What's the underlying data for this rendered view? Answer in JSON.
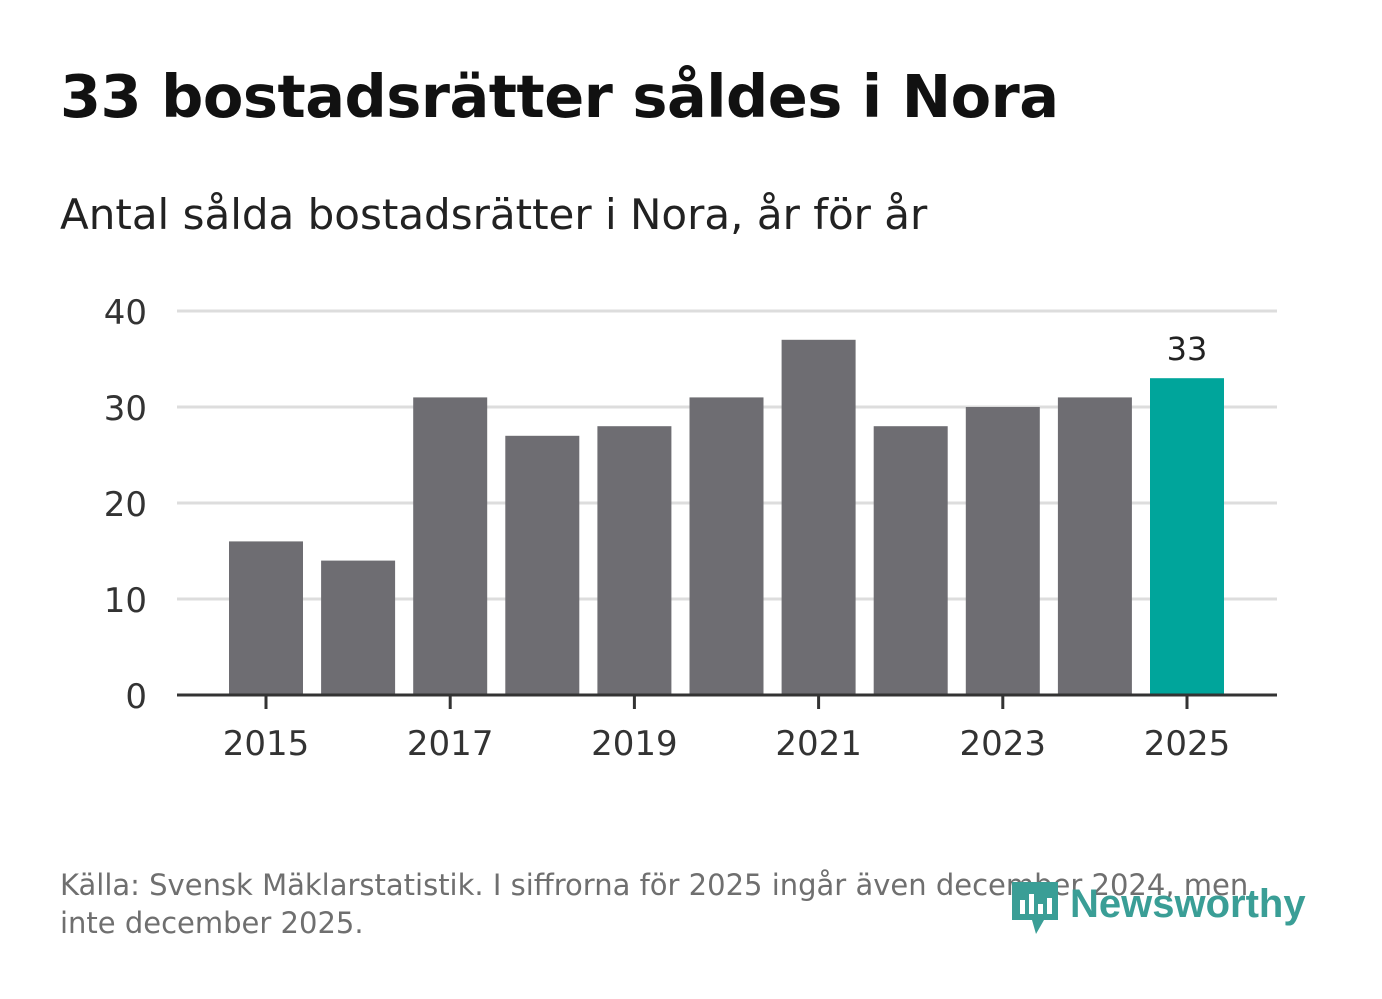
{
  "title": "33 bostadsrätter såldes i Nora",
  "subtitle": "Antal sålda bostadsrätter i Nora, år för år",
  "source": "Källa: Svensk Mäklarstatistik. I siffrorna för 2025 ingår även december 2024, men inte december 2025.",
  "logo": {
    "text": "Newsworthy",
    "icon": "newsworthy-logo-icon"
  },
  "colors": {
    "bar": "#6e6d72",
    "highlight": "#00a59b",
    "grid": "#dddddd",
    "axis": "#333333",
    "logo": "#3a9e96"
  },
  "chart_data": {
    "type": "bar",
    "categories": [
      "2015",
      "2016",
      "2017",
      "2018",
      "2019",
      "2020",
      "2021",
      "2022",
      "2023",
      "2024",
      "2025"
    ],
    "values": [
      16,
      14,
      31,
      27,
      28,
      31,
      37,
      28,
      30,
      31,
      33
    ],
    "x_tick_labels": [
      "2015",
      "2017",
      "2019",
      "2021",
      "2023",
      "2025"
    ],
    "y_ticks": [
      0,
      10,
      20,
      30,
      40
    ],
    "ylim": [
      0,
      40
    ],
    "highlight_index": 10,
    "data_labels": [
      {
        "category": "2025",
        "label": "33"
      }
    ],
    "title": "33 bostadsrätter såldes i Nora",
    "xlabel": "",
    "ylabel": "",
    "grid": true
  }
}
